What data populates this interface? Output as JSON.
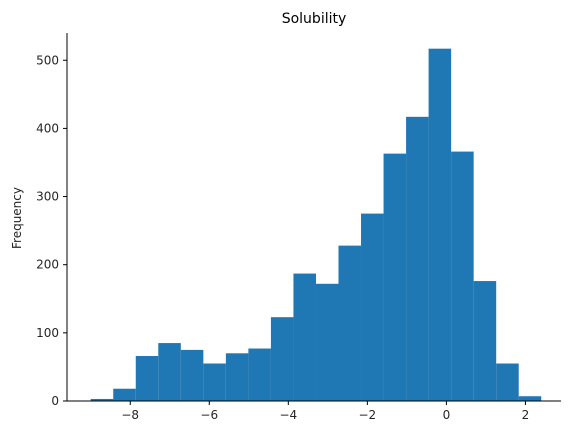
{
  "chart_data": {
    "type": "bar",
    "title": "Solubility",
    "xlabel": "",
    "ylabel": "Frequency",
    "xlim": [
      -9.6,
      2.9
    ],
    "ylim": [
      0,
      540
    ],
    "grid": false,
    "bin_edges": [
      -9.0,
      -8.43,
      -7.86,
      -7.29,
      -6.72,
      -6.15,
      -5.58,
      -5.01,
      -4.44,
      -3.87,
      -3.3,
      -2.73,
      -2.16,
      -1.59,
      -1.02,
      -0.45,
      0.12,
      0.69,
      1.26,
      1.83,
      2.4
    ],
    "values": [
      3,
      18,
      66,
      85,
      75,
      55,
      70,
      77,
      123,
      187,
      172,
      228,
      275,
      363,
      417,
      517,
      366,
      176,
      55,
      7
    ],
    "xticks": [
      -8,
      -6,
      -4,
      -2,
      0,
      2
    ],
    "yticks": [
      0,
      100,
      200,
      300,
      400,
      500
    ],
    "bar_color": "#1f77b4"
  }
}
